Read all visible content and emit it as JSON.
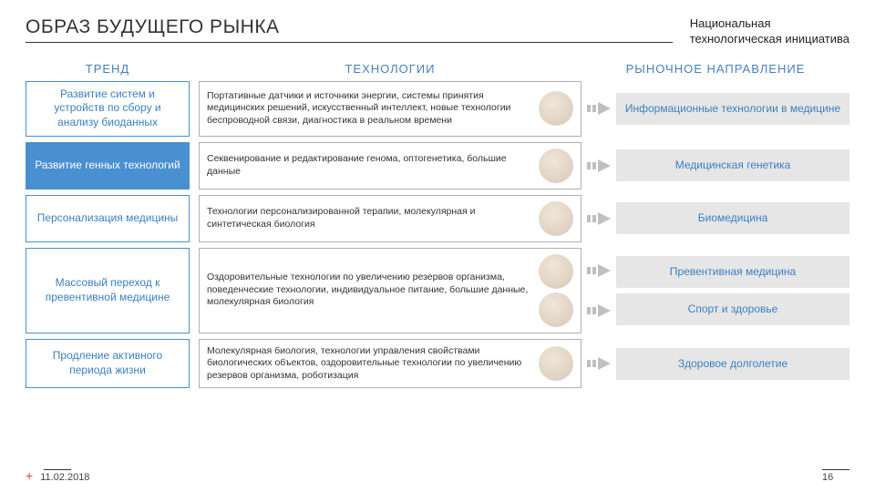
{
  "title": "ОБРАЗ БУДУЩЕГО РЫНКА",
  "brand": "Национальная\nтехнологическая инициатива",
  "headers": {
    "trend": "ТРЕНД",
    "tech": "ТЕХНОЛОГИИ",
    "market": "РЫНОЧНОЕ НАПРАВЛЕНИЕ"
  },
  "colors": {
    "accent": "#4a8fd0",
    "accent_text": "#3b7fc2",
    "border_gray": "#b0b0b0",
    "market_bg": "#e6e6e6",
    "arrow": "#bfbfbf"
  },
  "rows": [
    {
      "trend": "Развитие систем и устройств по сбору и анализу биоданных",
      "trend_active": false,
      "tech": "Портативные датчики и источники энергии, системы принятия медицинских решений, искусственный интеллект, новые технологии беспроводной связи, диагностика в реальном времени",
      "images": 1,
      "markets": [
        "Информационные технологии в медицине"
      ]
    },
    {
      "trend": "Развитие генных технологий",
      "trend_active": true,
      "tech": "Секвенирование и редактирование генома, оптогенетика, большие данные",
      "images": 1,
      "markets": [
        "Медицинская генетика"
      ]
    },
    {
      "trend": "Персонализация медицины",
      "trend_active": false,
      "tech": "Технологии персонализированной терапии, молекулярная и синтетическая биология",
      "images": 1,
      "markets": [
        "Биомедицина"
      ]
    },
    {
      "trend": "Массовый переход к превентивной медицине",
      "trend_active": false,
      "tech": "Оздоровительные технологии по увеличению резервов организма, поведенческие технологии, индивидуальное питание, большие данные, молекулярная биология",
      "images": 2,
      "markets": [
        "Превентивная медицина",
        "Спорт и здоровье"
      ]
    },
    {
      "trend": "Продление активного периода жизни",
      "trend_active": false,
      "tech": "Молекулярная биология, технологии управления свойствами биологических объектов, оздоровительные технологии по увеличению резервов организма, роботизация",
      "images": 1,
      "markets": [
        "Здоровое долголетие"
      ]
    }
  ],
  "footer": {
    "date": "11.02.2018",
    "page": "16"
  }
}
